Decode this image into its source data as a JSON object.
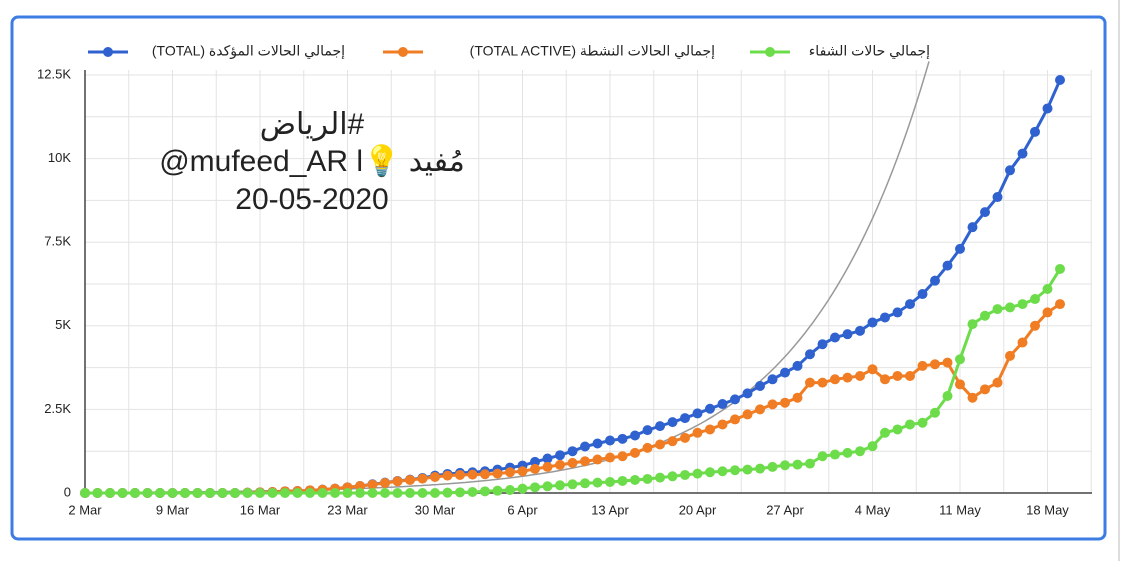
{
  "chart_data": {
    "type": "line",
    "annotations": [
      "#الرياض",
      "@mufeed_AR l💡 مُفيد",
      "20-05-2020"
    ],
    "categories": [
      "2 Mar",
      null,
      null,
      null,
      null,
      null,
      null,
      "9 Mar",
      null,
      null,
      null,
      null,
      null,
      null,
      "16 Mar",
      null,
      null,
      null,
      null,
      null,
      null,
      "23 Mar",
      null,
      null,
      null,
      null,
      null,
      null,
      "30 Mar",
      null,
      null,
      null,
      null,
      null,
      null,
      "6 Apr",
      null,
      null,
      null,
      null,
      null,
      null,
      "13 Apr",
      null,
      null,
      null,
      null,
      null,
      null,
      "20 Apr",
      null,
      null,
      null,
      null,
      null,
      null,
      "27 Apr",
      null,
      null,
      null,
      null,
      null,
      null,
      "4 May",
      null,
      null,
      null,
      null,
      null,
      null,
      "11 May",
      null,
      null,
      null,
      null,
      null,
      null,
      "18 May",
      null
    ],
    "series": [
      {
        "name": "إجمالي الحالات المؤكدة (TOTAL)",
        "color": "#2f62cf",
        "values": [
          0,
          0,
          0,
          0,
          0,
          0,
          0,
          0,
          0,
          0,
          0,
          0,
          0,
          10,
          20,
          30,
          50,
          60,
          80,
          100,
          130,
          170,
          210,
          260,
          310,
          360,
          400,
          450,
          520,
          570,
          600,
          620,
          650,
          700,
          760,
          820,
          930,
          1030,
          1130,
          1250,
          1390,
          1480,
          1570,
          1620,
          1720,
          1880,
          2000,
          2120,
          2240,
          2380,
          2520,
          2660,
          2800,
          2980,
          3200,
          3400,
          3600,
          3800,
          4150,
          4450,
          4650,
          4750,
          4850,
          5100,
          5250,
          5400,
          5650,
          5950,
          6350,
          6800,
          7300,
          7950,
          8400,
          8850,
          9650,
          10150,
          10800,
          11500,
          12350
        ]
      },
      {
        "name": "إجمالي الحالات النشطة (TOTAL ACTIVE)",
        "color": "#f07d24",
        "values": [
          0,
          0,
          0,
          0,
          0,
          0,
          0,
          0,
          0,
          0,
          0,
          0,
          0,
          10,
          20,
          30,
          50,
          60,
          80,
          100,
          130,
          170,
          210,
          250,
          300,
          350,
          390,
          430,
          480,
          520,
          540,
          550,
          560,
          580,
          620,
          650,
          720,
          780,
          840,
          900,
          950,
          1000,
          1060,
          1100,
          1200,
          1350,
          1450,
          1550,
          1650,
          1800,
          1900,
          2050,
          2200,
          2350,
          2500,
          2650,
          2700,
          2850,
          3300,
          3300,
          3400,
          3450,
          3500,
          3700,
          3400,
          3500,
          3500,
          3800,
          3850,
          3900,
          3250,
          2850,
          3100,
          3300,
          4100,
          4500,
          5000,
          5400,
          5650
        ]
      },
      {
        "name": "إجمالي حالات الشفاء",
        "color": "#6ddc4b",
        "values": [
          0,
          0,
          0,
          0,
          0,
          0,
          0,
          0,
          0,
          0,
          0,
          0,
          0,
          0,
          0,
          0,
          0,
          0,
          0,
          0,
          0,
          0,
          0,
          0,
          0,
          0,
          0,
          0,
          0,
          10,
          20,
          30,
          50,
          70,
          90,
          130,
          170,
          200,
          230,
          260,
          290,
          310,
          330,
          360,
          390,
          420,
          460,
          500,
          540,
          580,
          620,
          650,
          680,
          700,
          730,
          780,
          830,
          850,
          880,
          1100,
          1150,
          1200,
          1250,
          1400,
          1800,
          1900,
          2050,
          2100,
          2400,
          2900,
          4000,
          5050,
          5300,
          5500,
          5550,
          5650,
          5800,
          6100,
          6700
        ]
      }
    ],
    "ylim": [
      0,
      12500
    ],
    "yticks": [
      0,
      {
        "value": 2500,
        "label": "2.5K"
      },
      {
        "value": 5000,
        "label": "5K"
      },
      {
        "value": 7500,
        "label": "7.5K"
      },
      {
        "value": 10000,
        "label": "10K"
      },
      {
        "value": 12500,
        "label": "12.5K"
      }
    ],
    "grid": true,
    "legend": "top"
  }
}
